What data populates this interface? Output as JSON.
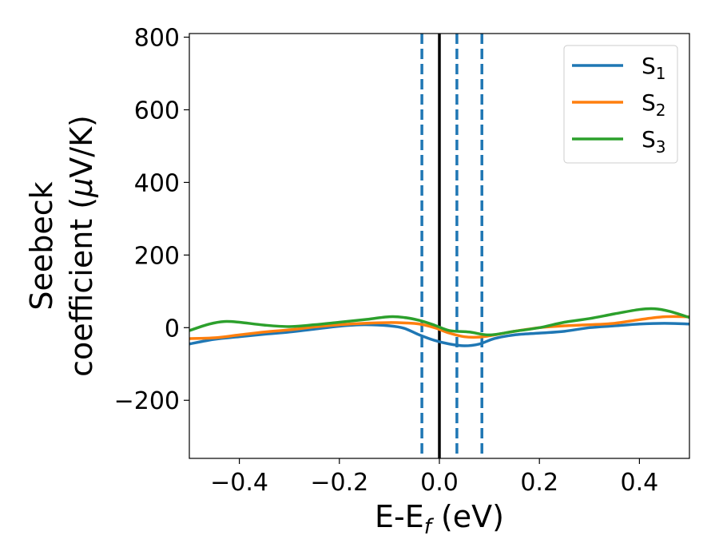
{
  "chart_data": {
    "type": "line",
    "xlabel": "E-E",
    "xlabel_sub": "f",
    "xlabel_unit": " (eV)",
    "ylabel_line1": "Seebeck",
    "ylabel_line2": "coefficient  (",
    "ylabel_mu": "μ",
    "ylabel_unit": "V/K)",
    "xlim": [
      -0.5,
      0.5
    ],
    "ylim": [
      -360,
      810
    ],
    "xticks": [
      -0.4,
      -0.2,
      0.0,
      0.2,
      0.4
    ],
    "xtick_labels": [
      "−0.4",
      "−0.2",
      "0.0",
      "0.2",
      "0.4"
    ],
    "yticks": [
      -200,
      0,
      200,
      400,
      600,
      800
    ],
    "ytick_labels": [
      "−200",
      "0",
      "200",
      "400",
      "600",
      "800"
    ],
    "grid": false,
    "legend_position": "top-right",
    "vertical_lines": [
      {
        "x": -0.035,
        "style": "dashed",
        "color": "#1f77b4"
      },
      {
        "x": 0.0,
        "style": "solid",
        "color": "#000000"
      },
      {
        "x": 0.035,
        "style": "dashed",
        "color": "#1f77b4"
      },
      {
        "x": 0.085,
        "style": "dashed",
        "color": "#1f77b4"
      }
    ],
    "series": [
      {
        "name": "S",
        "name_sub": "1",
        "color": "#1f77b4",
        "x": [
          -0.5,
          -0.45,
          -0.4,
          -0.35,
          -0.3,
          -0.25,
          -0.2,
          -0.15,
          -0.1,
          -0.07,
          -0.04,
          -0.01,
          0.02,
          0.05,
          0.08,
          0.11,
          0.15,
          0.2,
          0.25,
          0.3,
          0.35,
          0.4,
          0.45,
          0.5
        ],
        "y": [
          -45,
          -32,
          -25,
          -18,
          -12,
          -4,
          4,
          8,
          5,
          -2,
          -20,
          -35,
          -45,
          -50,
          -45,
          -30,
          -20,
          -15,
          -10,
          0,
          5,
          10,
          12,
          10
        ]
      },
      {
        "name": "S",
        "name_sub": "2",
        "color": "#ff7f0e",
        "x": [
          -0.5,
          -0.45,
          -0.4,
          -0.35,
          -0.3,
          -0.25,
          -0.2,
          -0.15,
          -0.1,
          -0.07,
          -0.04,
          -0.01,
          0.02,
          0.05,
          0.08,
          0.11,
          0.15,
          0.2,
          0.25,
          0.3,
          0.35,
          0.4,
          0.45,
          0.5
        ],
        "y": [
          -30,
          -28,
          -20,
          -12,
          -6,
          2,
          8,
          12,
          14,
          13,
          10,
          0,
          -15,
          -25,
          -26,
          -20,
          -10,
          0,
          5,
          8,
          12,
          22,
          30,
          30
        ]
      },
      {
        "name": "S",
        "name_sub": "3",
        "color": "#2ca02c",
        "x": [
          -0.5,
          -0.46,
          -0.43,
          -0.4,
          -0.35,
          -0.3,
          -0.25,
          -0.2,
          -0.15,
          -0.1,
          -0.07,
          -0.04,
          -0.01,
          0.02,
          0.06,
          0.1,
          0.15,
          0.2,
          0.25,
          0.3,
          0.35,
          0.4,
          0.43,
          0.46,
          0.5
        ],
        "y": [
          -8,
          10,
          17,
          15,
          7,
          3,
          8,
          15,
          22,
          30,
          28,
          20,
          7,
          -8,
          -12,
          -20,
          -10,
          0,
          15,
          25,
          38,
          50,
          52,
          45,
          28
        ]
      }
    ]
  }
}
